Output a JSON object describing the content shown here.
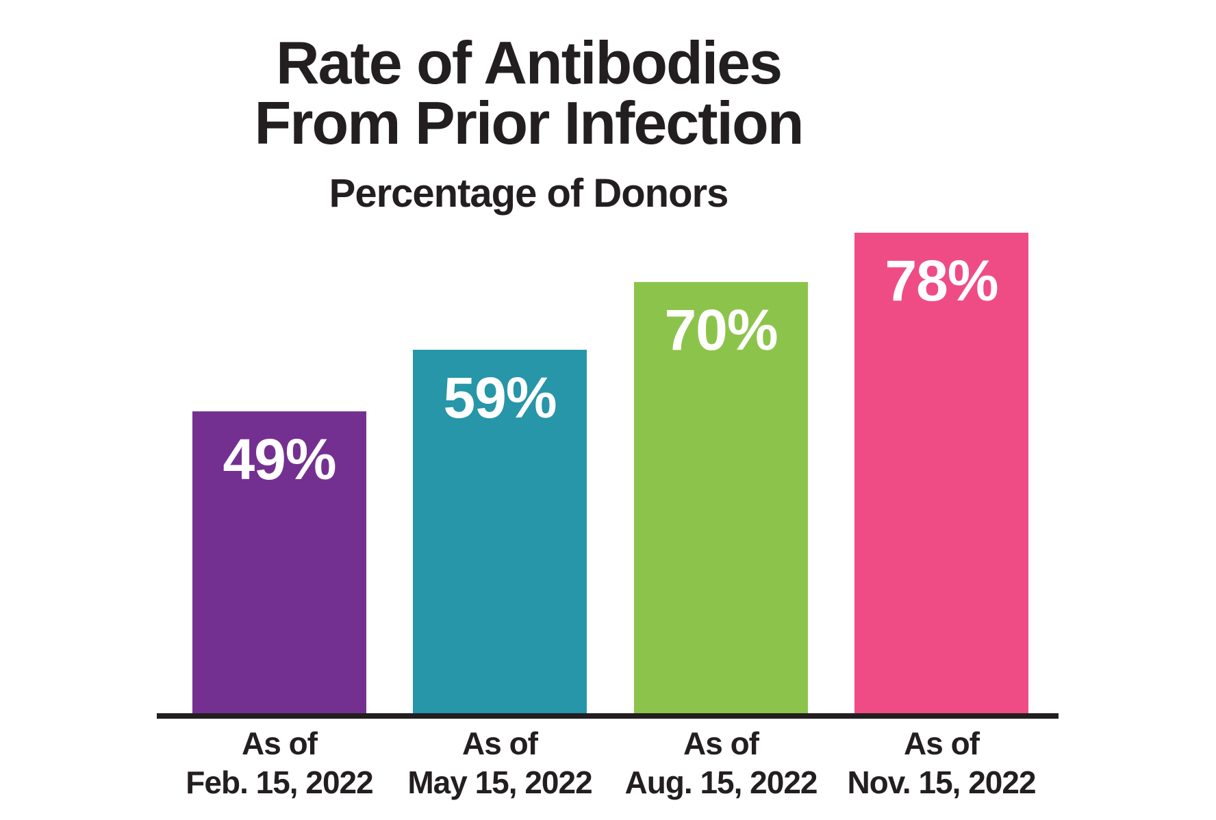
{
  "page": {
    "background_color": "#FFFFFF",
    "text_color": "#231F20"
  },
  "header": {
    "title_lines": [
      "Rate of Antibodies",
      "From Prior Infection"
    ],
    "subtitle": "Percentage of Donors"
  },
  "chart_data": {
    "type": "bar",
    "title": "Rate of Antibodies From Prior Infection",
    "subtitle": "Percentage of Donors",
    "categories": [
      "As of Feb. 15, 2022",
      "As of May 15, 2022",
      "As of Aug. 15, 2022",
      "As of Nov. 15, 2022"
    ],
    "category_label_lines": [
      [
        "As of",
        "Feb. 15, 2022"
      ],
      [
        "As of",
        "May 15, 2022"
      ],
      [
        "As of",
        "Aug. 15, 2022"
      ],
      [
        "As of",
        "Nov. 15, 2022"
      ]
    ],
    "series": [
      {
        "name": "Percentage of Donors",
        "values": [
          49,
          59,
          70,
          78
        ]
      }
    ],
    "values": [
      49,
      59,
      70,
      78
    ],
    "value_labels": [
      "49%",
      "59%",
      "70%",
      "78%"
    ],
    "bar_colors": [
      "#743090",
      "#2696A8",
      "#8CC44B",
      "#EF4C86"
    ],
    "value_label_color": "#FFFFFF",
    "axis_line_color": "#231F20",
    "label_color": "#231F20",
    "ylabel": "",
    "xlabel": "",
    "ylim": [
      0,
      100
    ],
    "y_axis_visible": false,
    "gridlines": false,
    "legend_position": "none"
  }
}
